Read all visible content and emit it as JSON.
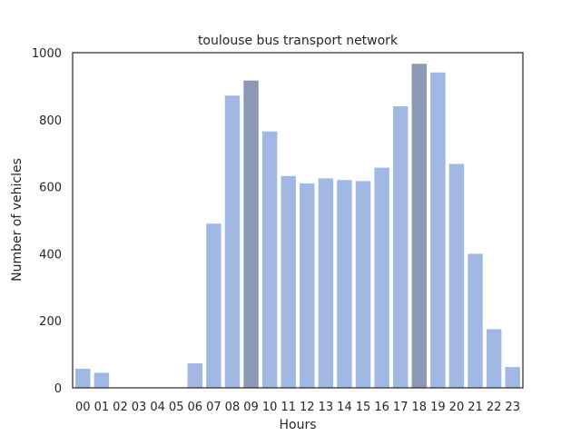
{
  "chart_data": {
    "type": "bar",
    "title": "toulouse bus transport network",
    "xlabel": "Hours",
    "ylabel": "Number of vehicles",
    "ylim": [
      0,
      1000
    ],
    "yticks": [
      0,
      200,
      400,
      600,
      800,
      1000
    ],
    "categories": [
      "00",
      "01",
      "02",
      "03",
      "04",
      "05",
      "06",
      "07",
      "08",
      "09",
      "10",
      "11",
      "12",
      "13",
      "14",
      "15",
      "16",
      "17",
      "18",
      "19",
      "20",
      "21",
      "22",
      "23"
    ],
    "values": [
      57,
      45,
      0,
      0,
      0,
      0,
      73,
      490,
      872,
      917,
      765,
      632,
      610,
      625,
      620,
      617,
      657,
      840,
      967,
      941,
      668,
      400,
      175,
      62
    ],
    "highlighted_categories": [
      "09",
      "18"
    ],
    "colors": {
      "bar": "#a1b8e5",
      "highlight": "#8d9ab5"
    },
    "grid": false,
    "legend": "none"
  }
}
